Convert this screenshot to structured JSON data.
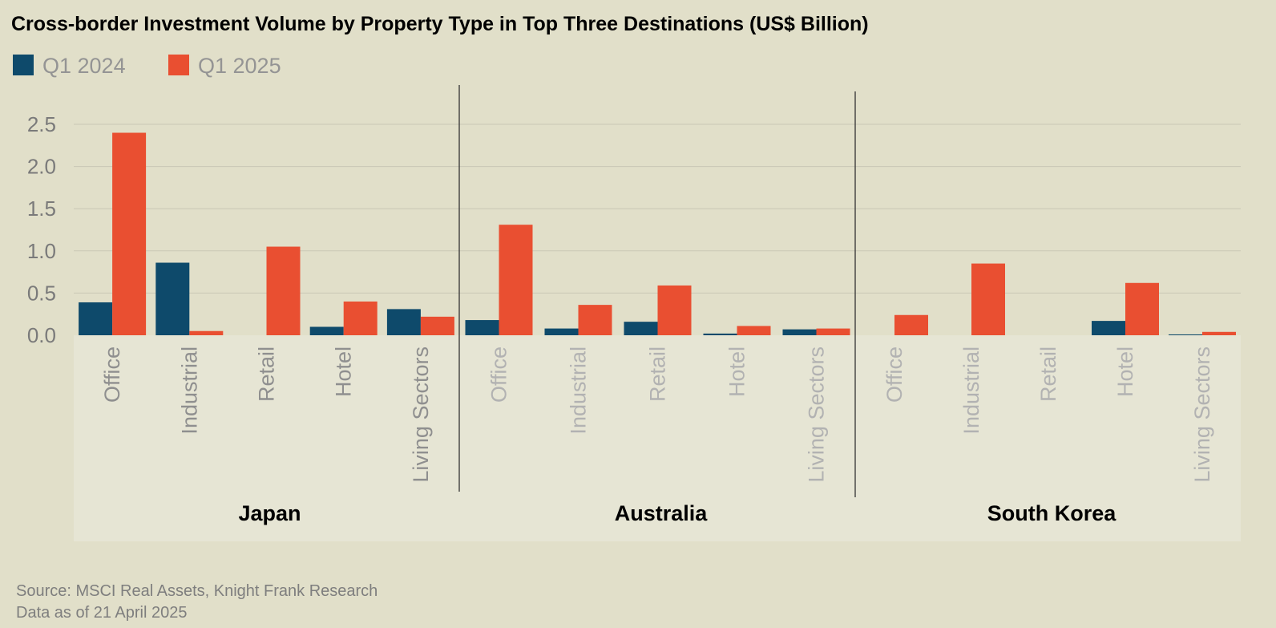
{
  "title": "Cross-border Investment Volume by Property Type in Top Three Destinations (US$ Billion)",
  "colors": {
    "series0": "#0e4a6b",
    "series1": "#e94f31",
    "grid": "#c9c7b5",
    "panel": "#e6e5d4"
  },
  "chart_data": {
    "type": "bar",
    "title": "Cross-border Investment Volume by Property Type in Top Three Destinations (US$ Billion)",
    "ylim": [
      0,
      2.5
    ],
    "yticks": [
      "0.0",
      "0.5",
      "1.0",
      "1.5",
      "2.0",
      "2.5"
    ],
    "grid": true,
    "legend": "top-left",
    "groups": [
      "Japan",
      "Australia",
      "South Korea"
    ],
    "categories": [
      "Office",
      "Industrial",
      "Retail",
      "Hotel",
      "Living Sectors"
    ],
    "series": [
      {
        "name": "Q1 2024",
        "values": [
          [
            0.39,
            0.86,
            0.0,
            0.1,
            0.31
          ],
          [
            0.18,
            0.08,
            0.16,
            0.02,
            0.07
          ],
          [
            0.0,
            0.0,
            0.0,
            0.17,
            0.01
          ]
        ]
      },
      {
        "name": "Q1 2025",
        "values": [
          [
            2.4,
            0.05,
            1.05,
            0.4,
            0.22
          ],
          [
            1.31,
            0.36,
            0.59,
            0.11,
            0.08
          ],
          [
            0.24,
            0.85,
            0.0,
            0.62,
            0.04
          ]
        ]
      }
    ]
  },
  "source": "Source: MSCI Real Assets, Knight Frank Research",
  "data_note": "Data as of 21 April 2025"
}
